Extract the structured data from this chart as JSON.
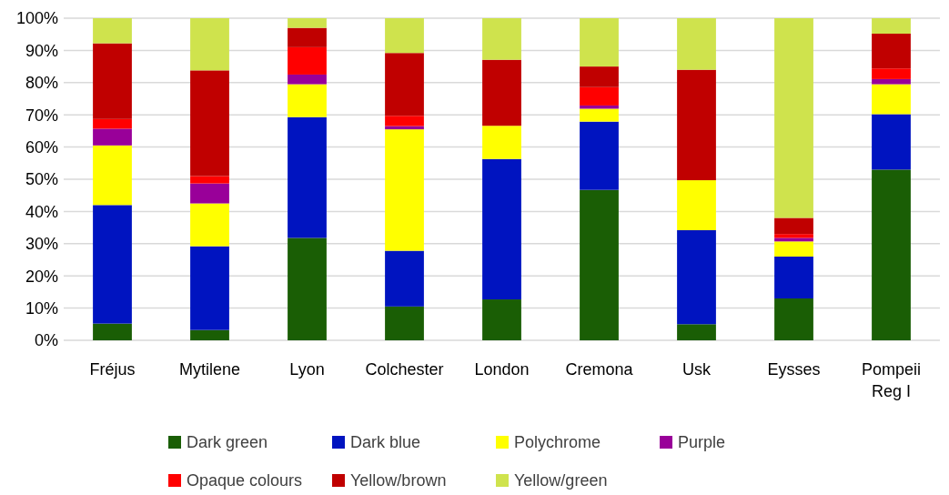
{
  "chart_data": {
    "type": "bar",
    "stacked": true,
    "categories": [
      "Fréjus",
      "Mytilene",
      "Lyon",
      "Colchester",
      "London",
      "Cremona",
      "Usk",
      "Eysses",
      "Pompeii Reg I"
    ],
    "series": [
      {
        "name": "Dark green",
        "color": "#1a5e05",
        "values": [
          5.2,
          3.2,
          31.8,
          10.5,
          12.7,
          46.7,
          5.0,
          13.0,
          53.0
        ]
      },
      {
        "name": "Dark blue",
        "color": "#0014c0",
        "values": [
          36.8,
          26.0,
          37.5,
          17.3,
          43.6,
          21.2,
          29.2,
          13.0,
          17.2
        ]
      },
      {
        "name": "Polychrome",
        "color": "#ffff00",
        "values": [
          18.5,
          13.3,
          10.2,
          37.7,
          10.3,
          4.0,
          15.5,
          4.7,
          9.3
        ]
      },
      {
        "name": "Purple",
        "color": "#990099",
        "values": [
          5.2,
          6.2,
          3.0,
          1.0,
          0,
          1.0,
          0,
          1.1,
          1.6
        ]
      },
      {
        "name": "Opaque colours",
        "color": "#ff0000",
        "values": [
          3.0,
          2.3,
          8.5,
          3.2,
          0,
          5.7,
          0,
          1.2,
          3.3
        ]
      },
      {
        "name": "Yellow/brown",
        "color": "#c00000",
        "values": [
          23.5,
          32.8,
          6.0,
          19.5,
          20.5,
          6.4,
          34.3,
          5.0,
          10.8
        ]
      },
      {
        "name": "Yellow/green",
        "color": "#cfe34d",
        "values": [
          7.8,
          16.2,
          3.0,
          10.8,
          12.9,
          15.0,
          16.0,
          62.0,
          4.8
        ]
      }
    ],
    "ylim": [
      0,
      100
    ],
    "yticks": [
      {
        "value": 0,
        "label": "0%"
      },
      {
        "value": 10,
        "label": "10%"
      },
      {
        "value": 20,
        "label": "20%"
      },
      {
        "value": 30,
        "label": "30%"
      },
      {
        "value": 40,
        "label": "40%"
      },
      {
        "value": 50,
        "label": "50%"
      },
      {
        "value": 60,
        "label": "60%"
      },
      {
        "value": 70,
        "label": "70%"
      },
      {
        "value": 80,
        "label": "80%"
      },
      {
        "value": 90,
        "label": "90%"
      },
      {
        "value": 100,
        "label": "100%"
      }
    ],
    "grid": "y",
    "legend": "bottom"
  }
}
